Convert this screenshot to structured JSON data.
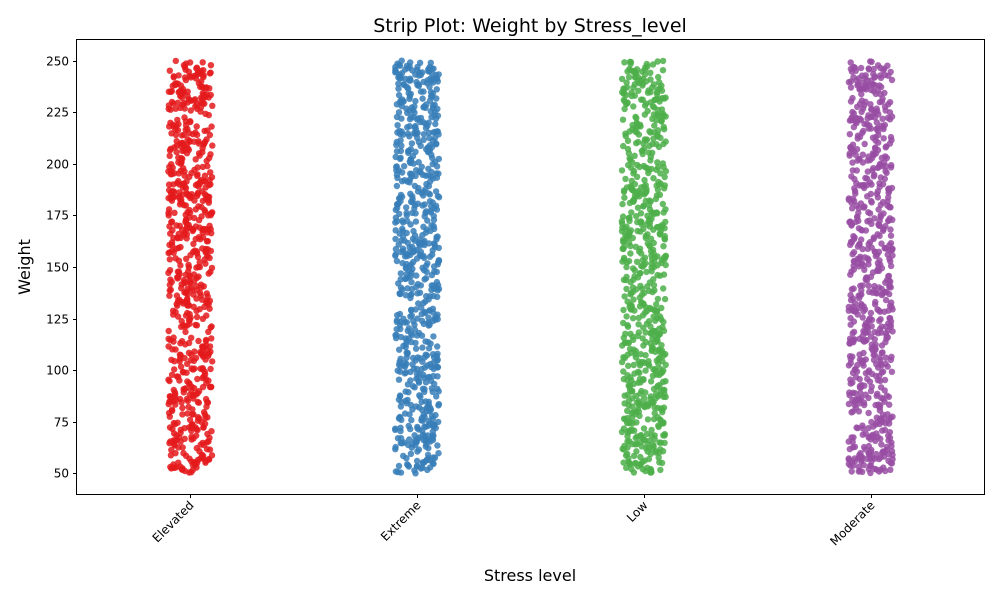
{
  "chart_data": {
    "type": "scatter",
    "title": "Strip Plot: Weight by Stress_level",
    "xlabel": "Stress level",
    "ylabel": "Weight",
    "categories": [
      "Elevated",
      "Extreme",
      "Low",
      "Moderate"
    ],
    "y_range_per_category": [
      {
        "name": "Elevated",
        "min": 50,
        "max": 250
      },
      {
        "name": "Extreme",
        "min": 50,
        "max": 250
      },
      {
        "name": "Low",
        "min": 50,
        "max": 250
      },
      {
        "name": "Moderate",
        "min": 50,
        "max": 250
      }
    ],
    "colors": [
      "#e41a1c",
      "#377eb8",
      "#4daf4a",
      "#984ea3"
    ],
    "ylim": [
      40,
      260
    ],
    "yticks": [
      50,
      75,
      100,
      125,
      150,
      175,
      200,
      225,
      250
    ],
    "grid": false,
    "legend": "none"
  }
}
